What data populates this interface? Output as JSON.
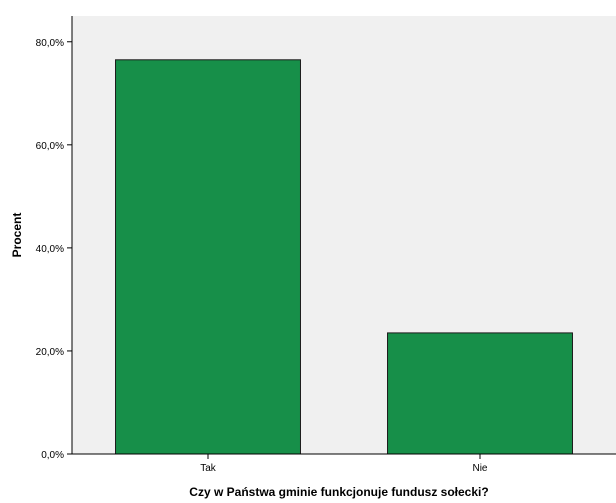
{
  "chart_data": {
    "type": "bar",
    "categories": [
      "Tak",
      "Nie"
    ],
    "values": [
      76.5,
      23.5
    ],
    "xlabel": "Czy w Państwa gminie funkcjonuje fundusz sołecki?",
    "ylabel": "Procent",
    "ylim": [
      0,
      85
    ],
    "yticks": [
      0,
      20,
      40,
      60,
      80
    ],
    "ytick_labels": [
      "0,0%",
      "20,0%",
      "40,0%",
      "60,0%",
      "80,0%"
    ],
    "grid": false,
    "legend": "none",
    "colors": {
      "bar_fill": "#178f49",
      "bar_stroke": "#1a1a1a",
      "plot_background": "#f0f0f0",
      "axis": "#000000"
    }
  }
}
